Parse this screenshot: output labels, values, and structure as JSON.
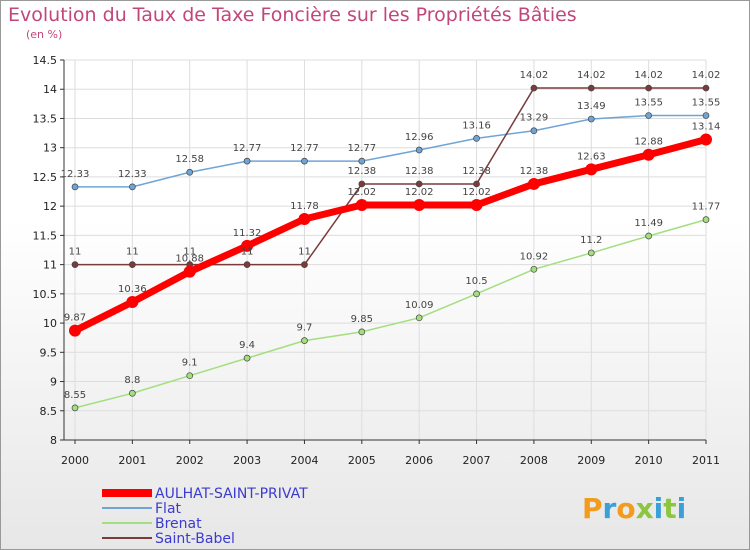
{
  "chart_data": {
    "type": "line",
    "title": "Evolution du Taux de Taxe Foncière sur les Propriétés Bâties",
    "subtitle": "(en %)",
    "x": [
      "2000",
      "2001",
      "2002",
      "2003",
      "2004",
      "2005",
      "2006",
      "2007",
      "2008",
      "2009",
      "2010",
      "2011"
    ],
    "ylim": [
      8,
      14.5
    ],
    "yticks": [
      "8",
      "8.5",
      "9",
      "9.5",
      "10",
      "10.5",
      "11",
      "11.5",
      "12",
      "12.5",
      "13",
      "13.5",
      "14",
      "14.5"
    ],
    "grid": true,
    "legend_position": "bottom-left",
    "series": [
      {
        "name": "AULHAT-SAINT-PRIVAT",
        "color": "#ff0000",
        "values": [
          9.87,
          10.36,
          10.88,
          11.32,
          11.78,
          12.02,
          12.02,
          12.02,
          12.38,
          12.63,
          12.88,
          13.14
        ],
        "labels": [
          "9.87",
          "10.36",
          "10.88",
          "11.32",
          "11.78",
          "12.02",
          "12.02",
          "12.02",
          "12.38",
          "12.63",
          "12.88",
          "13.14"
        ]
      },
      {
        "name": "Flat",
        "color": "#6fa5d6",
        "values": [
          12.33,
          12.33,
          12.58,
          12.77,
          12.77,
          12.77,
          12.96,
          13.16,
          13.29,
          13.49,
          13.55,
          13.55
        ],
        "labels": [
          "12.33",
          "12.33",
          "12.58",
          "12.77",
          "12.77",
          "12.77",
          "12.96",
          "13.16",
          "13.29",
          "13.49",
          "13.55",
          "13.55"
        ]
      },
      {
        "name": "Brenat",
        "color": "#a3de7f",
        "values": [
          8.55,
          8.8,
          9.1,
          9.4,
          9.7,
          9.85,
          10.09,
          10.5,
          10.92,
          11.2,
          11.49,
          11.77
        ],
        "labels": [
          "8.55",
          "8.8",
          "9.1",
          "9.4",
          "9.7",
          "9.85",
          "10.09",
          "10.5",
          "10.92",
          "11.2",
          "11.49",
          "11.77"
        ]
      },
      {
        "name": "Saint-Babel",
        "color": "#7a3b3b",
        "values": [
          11,
          11,
          11,
          11,
          11,
          12.38,
          12.38,
          12.38,
          14.02,
          14.02,
          14.02,
          14.02
        ],
        "labels": [
          "11",
          "11",
          "11",
          "11",
          "11",
          "12.38",
          "12.38",
          "12.38",
          "14.02",
          "14.02",
          "14.02",
          "14.02"
        ]
      }
    ]
  },
  "logo": {
    "text": "Proxiti",
    "colors": [
      "#f29b1d",
      "#3aa0d8",
      "#f29b1d",
      "#8cc63f",
      "#3aa0d8",
      "#8cc63f",
      "#3aa0d8"
    ]
  }
}
